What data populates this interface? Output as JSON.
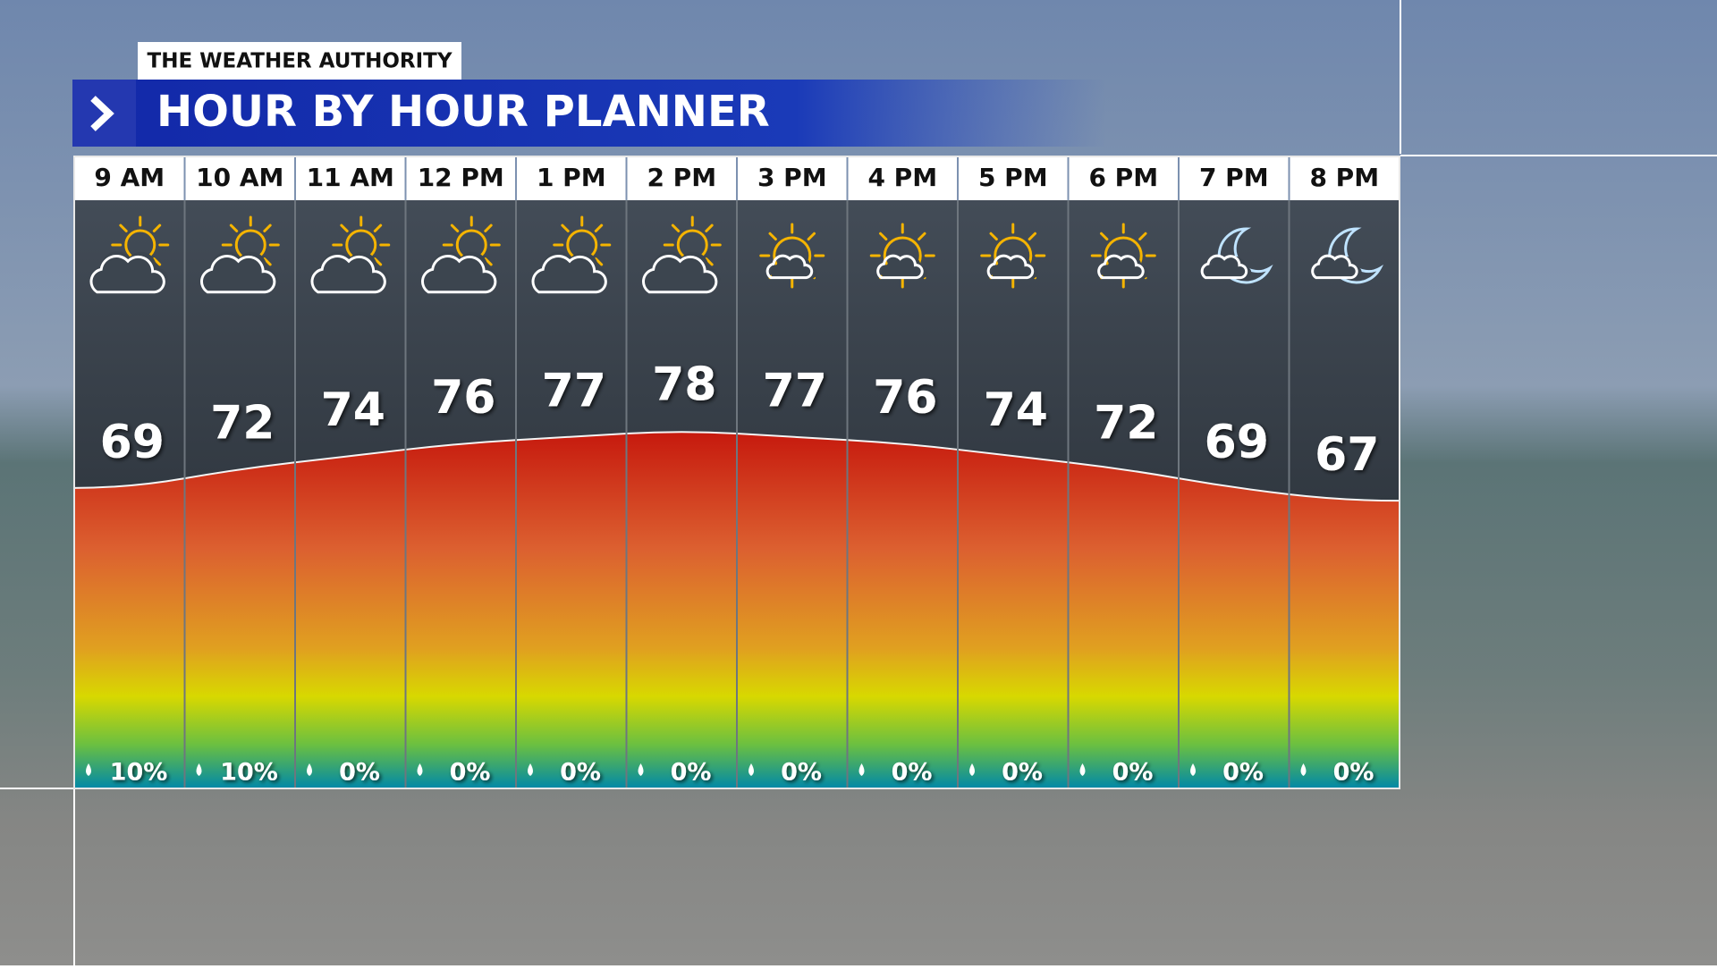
{
  "chart_data": {
    "type": "area",
    "brand": "THE WEATHER AUTHORITY",
    "title": "HOUR BY HOUR PLANNER",
    "categories": [
      "9 AM",
      "10 AM",
      "11 AM",
      "12 PM",
      "1 PM",
      "2 PM",
      "3 PM",
      "4 PM",
      "5 PM",
      "6 PM",
      "7 PM",
      "8 PM"
    ],
    "values": [
      69,
      72,
      74,
      76,
      77,
      78,
      77,
      76,
      74,
      72,
      69,
      67
    ],
    "ylim": [
      22,
      114
    ],
    "icons": [
      "partly-cloudy",
      "partly-cloudy",
      "partly-cloudy",
      "partly-cloudy",
      "partly-cloudy",
      "partly-cloudy",
      "partly-sunny",
      "partly-sunny",
      "partly-sunny",
      "partly-sunny",
      "night",
      "night"
    ],
    "precipitation": {
      "values": [
        10,
        10,
        0,
        0,
        0,
        0,
        0,
        0,
        0,
        0,
        0,
        0
      ],
      "value_labels": [
        "10%",
        "10%",
        "0%",
        "0%",
        "0%",
        "0%",
        "0%",
        "0%",
        "0%",
        "0%",
        "0%",
        "0%"
      ]
    }
  }
}
